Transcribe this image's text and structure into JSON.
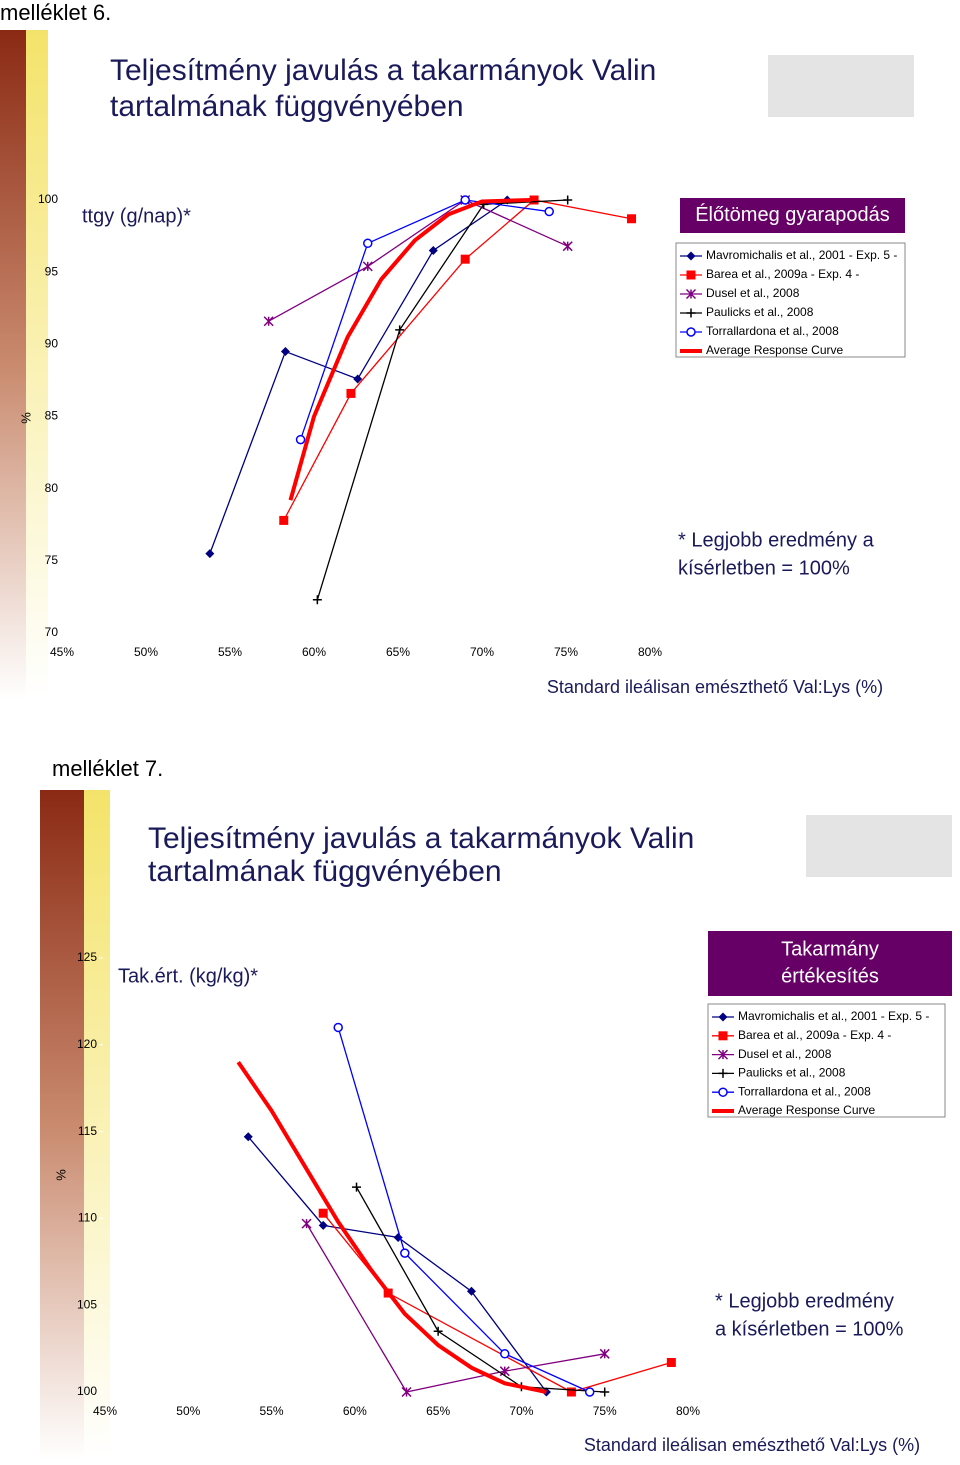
{
  "chart_data": [
    {
      "type": "line",
      "annex": "melléklet 6.",
      "title_lines": [
        "Teljesítmény javulás a takarmányok Valin",
        "tartalmának függvényében"
      ],
      "subtitle": "ttgy (g/nap)*",
      "box_title_lines": [
        "Élőtömeg gyarapodás"
      ],
      "note_lines": [
        "* Legjobb eredmény a",
        "kísérletben = 100%"
      ],
      "xlabel": "Standard ileálisan emészthető Val:Lys (%)",
      "ylabel": "%",
      "grid": false,
      "xlim": [
        45,
        80
      ],
      "ylim": [
        70,
        100
      ],
      "xticks": [
        {
          "value": 45,
          "label": "45%"
        },
        {
          "value": 50,
          "label": "50%"
        },
        {
          "value": 55,
          "label": "55%"
        },
        {
          "value": 60,
          "label": "60%"
        },
        {
          "value": 65,
          "label": "65%"
        },
        {
          "value": 70,
          "label": "70%"
        },
        {
          "value": 75,
          "label": "75%"
        },
        {
          "value": 80,
          "label": "80%"
        }
      ],
      "yticks": [
        70,
        75,
        80,
        85,
        90,
        95,
        100
      ],
      "series": [
        {
          "name": "Mavromichalis et al., 2001 - Exp. 5 -",
          "color": "#000080",
          "marker": "diamond",
          "x": [
            53.8,
            58.3,
            62.6,
            67.1,
            71.5
          ],
          "values": [
            75.5,
            89.5,
            87.6,
            96.5,
            100
          ]
        },
        {
          "name": "Barea et al., 2009a - Exp. 4 -",
          "color": "#ff0000",
          "marker": "square",
          "x": [
            58.2,
            62.2,
            69.0,
            73.1,
            78.9
          ],
          "values": [
            77.8,
            86.6,
            95.9,
            100,
            98.7
          ]
        },
        {
          "name": "Dusel et al., 2008",
          "color": "#800080",
          "marker": "star",
          "x": [
            57.3,
            63.2,
            69.0,
            75.1
          ],
          "values": [
            91.6,
            95.4,
            100,
            96.8
          ]
        },
        {
          "name": "Paulicks et al., 2008",
          "color": "#000000",
          "marker": "plus",
          "x": [
            60.2,
            65.1,
            70.1,
            75.1
          ],
          "values": [
            72.3,
            91.0,
            99.7,
            100
          ]
        },
        {
          "name": "Torrallardona et al., 2008",
          "color": "#0000ff",
          "marker": "circle",
          "x": [
            59.2,
            63.2,
            69.0,
            74.0
          ],
          "values": [
            83.4,
            97.0,
            100,
            99.2
          ]
        },
        {
          "name": "Average Response Curve",
          "color": "#ff0000",
          "marker": "thick",
          "x": [
            58.6,
            60,
            62,
            64,
            66,
            68,
            70,
            72.9
          ],
          "values": [
            79.2,
            85,
            90.5,
            94.5,
            97.2,
            99,
            99.9,
            100
          ]
        }
      ]
    },
    {
      "type": "line",
      "annex": "melléklet 7.",
      "title_lines": [
        "Teljesítmény javulás a takarmányok Valin",
        "tartalmának függvényében"
      ],
      "subtitle": "Tak.ért. (kg/kg)*",
      "box_title_lines": [
        "Takarmány",
        "értékesítés"
      ],
      "note_lines": [
        "* Legjobb eredmény",
        "a kísérletben = 100%"
      ],
      "xlabel": "Standard ileálisan emészthető Val:Lys (%)",
      "ylabel": "%",
      "grid": false,
      "xlim": [
        45,
        80
      ],
      "ylim": [
        100,
        125
      ],
      "xticks": [
        {
          "value": 45,
          "label": "45%"
        },
        {
          "value": 50,
          "label": "50%"
        },
        {
          "value": 55,
          "label": "55%"
        },
        {
          "value": 60,
          "label": "60%"
        },
        {
          "value": 65,
          "label": "65%"
        },
        {
          "value": 70,
          "label": "70%"
        },
        {
          "value": 75,
          "label": "75%"
        },
        {
          "value": 80,
          "label": "80%"
        }
      ],
      "yticks": [
        100,
        105,
        110,
        115,
        120,
        125
      ],
      "series": [
        {
          "name": "Mavromichalis et al., 2001 - Exp. 5 -",
          "color": "#000080",
          "marker": "diamond",
          "x": [
            53.6,
            58.1,
            62.6,
            67.0,
            71.5
          ],
          "values": [
            114.7,
            109.6,
            108.9,
            105.8,
            100
          ]
        },
        {
          "name": "Barea et al., 2009a - Exp. 4 -",
          "color": "#ff0000",
          "marker": "square",
          "x": [
            58.1,
            62.0,
            73.0,
            79.0
          ],
          "values": [
            110.3,
            105.7,
            100,
            101.7
          ]
        },
        {
          "name": "Dusel et al., 2008",
          "color": "#800080",
          "marker": "star",
          "x": [
            57.1,
            63.1,
            69.0,
            75.0
          ],
          "values": [
            109.7,
            100,
            101.2,
            102.2
          ]
        },
        {
          "name": "Paulicks et al., 2008",
          "color": "#000000",
          "marker": "plus",
          "x": [
            60.1,
            65.0,
            70.0,
            75.0
          ],
          "values": [
            111.8,
            103.5,
            100.3,
            100
          ]
        },
        {
          "name": "Torrallardona et al., 2008",
          "color": "#0000ff",
          "marker": "circle",
          "x": [
            59.0,
            63.0,
            69.0,
            74.1
          ],
          "values": [
            121.0,
            108.0,
            102.2,
            100
          ]
        },
        {
          "name": "Average Response Curve",
          "color": "#ff0000",
          "marker": "thick",
          "x": [
            53,
            55,
            57,
            59,
            61,
            63,
            65,
            67,
            69,
            71.5
          ],
          "values": [
            119,
            116.2,
            113,
            109.8,
            107,
            104.5,
            102.7,
            101.4,
            100.5,
            100
          ]
        }
      ]
    }
  ]
}
